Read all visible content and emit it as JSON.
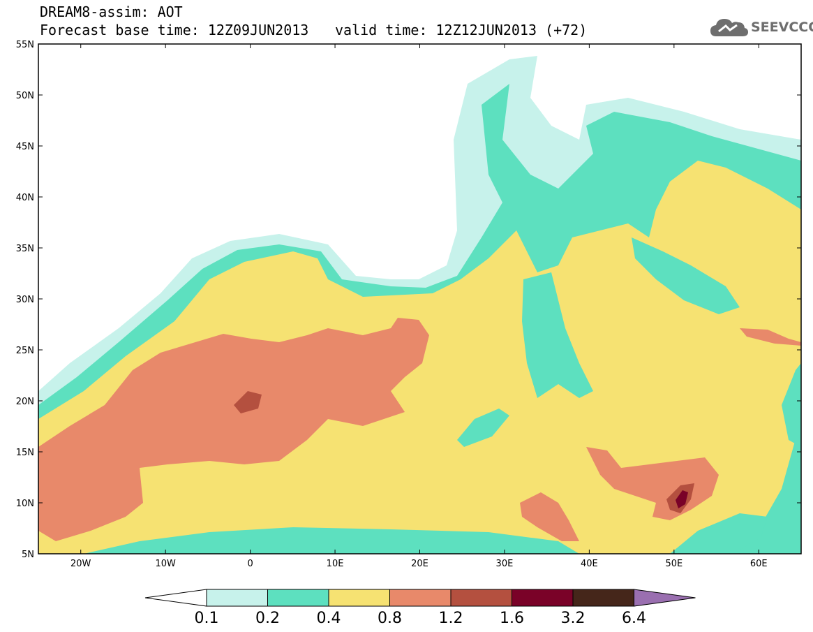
{
  "header": {
    "title": "DREAM8-assim: AOT",
    "base_time": "Forecast base time: 12Z09JUN2013",
    "valid_time": "valid time: 12Z12JUN2013 (+72)"
  },
  "logo": {
    "text": "SEEVCCC",
    "icon": "cloud-icon"
  },
  "map": {
    "lon_range": [
      -25,
      65
    ],
    "lat_range": [
      5,
      55
    ],
    "lat_labels": [
      "5N",
      "10N",
      "15N",
      "20N",
      "25N",
      "30N",
      "35N",
      "40N",
      "45N",
      "50N",
      "55N"
    ],
    "lon_labels": [
      "20W",
      "10W",
      "0",
      "10E",
      "20E",
      "30E",
      "40E",
      "50E",
      "60E"
    ],
    "variable": "AOT"
  },
  "legend": {
    "thresholds": [
      "0.1",
      "0.2",
      "0.4",
      "0.8",
      "1.2",
      "1.6",
      "3.2",
      "6.4"
    ],
    "colors": [
      "#ffffff",
      "#c7f2eb",
      "#5de0bf",
      "#f6e272",
      "#e8896a",
      "#b4503f",
      "#7a0228",
      "#45261a",
      "#9a6fb0"
    ]
  }
}
